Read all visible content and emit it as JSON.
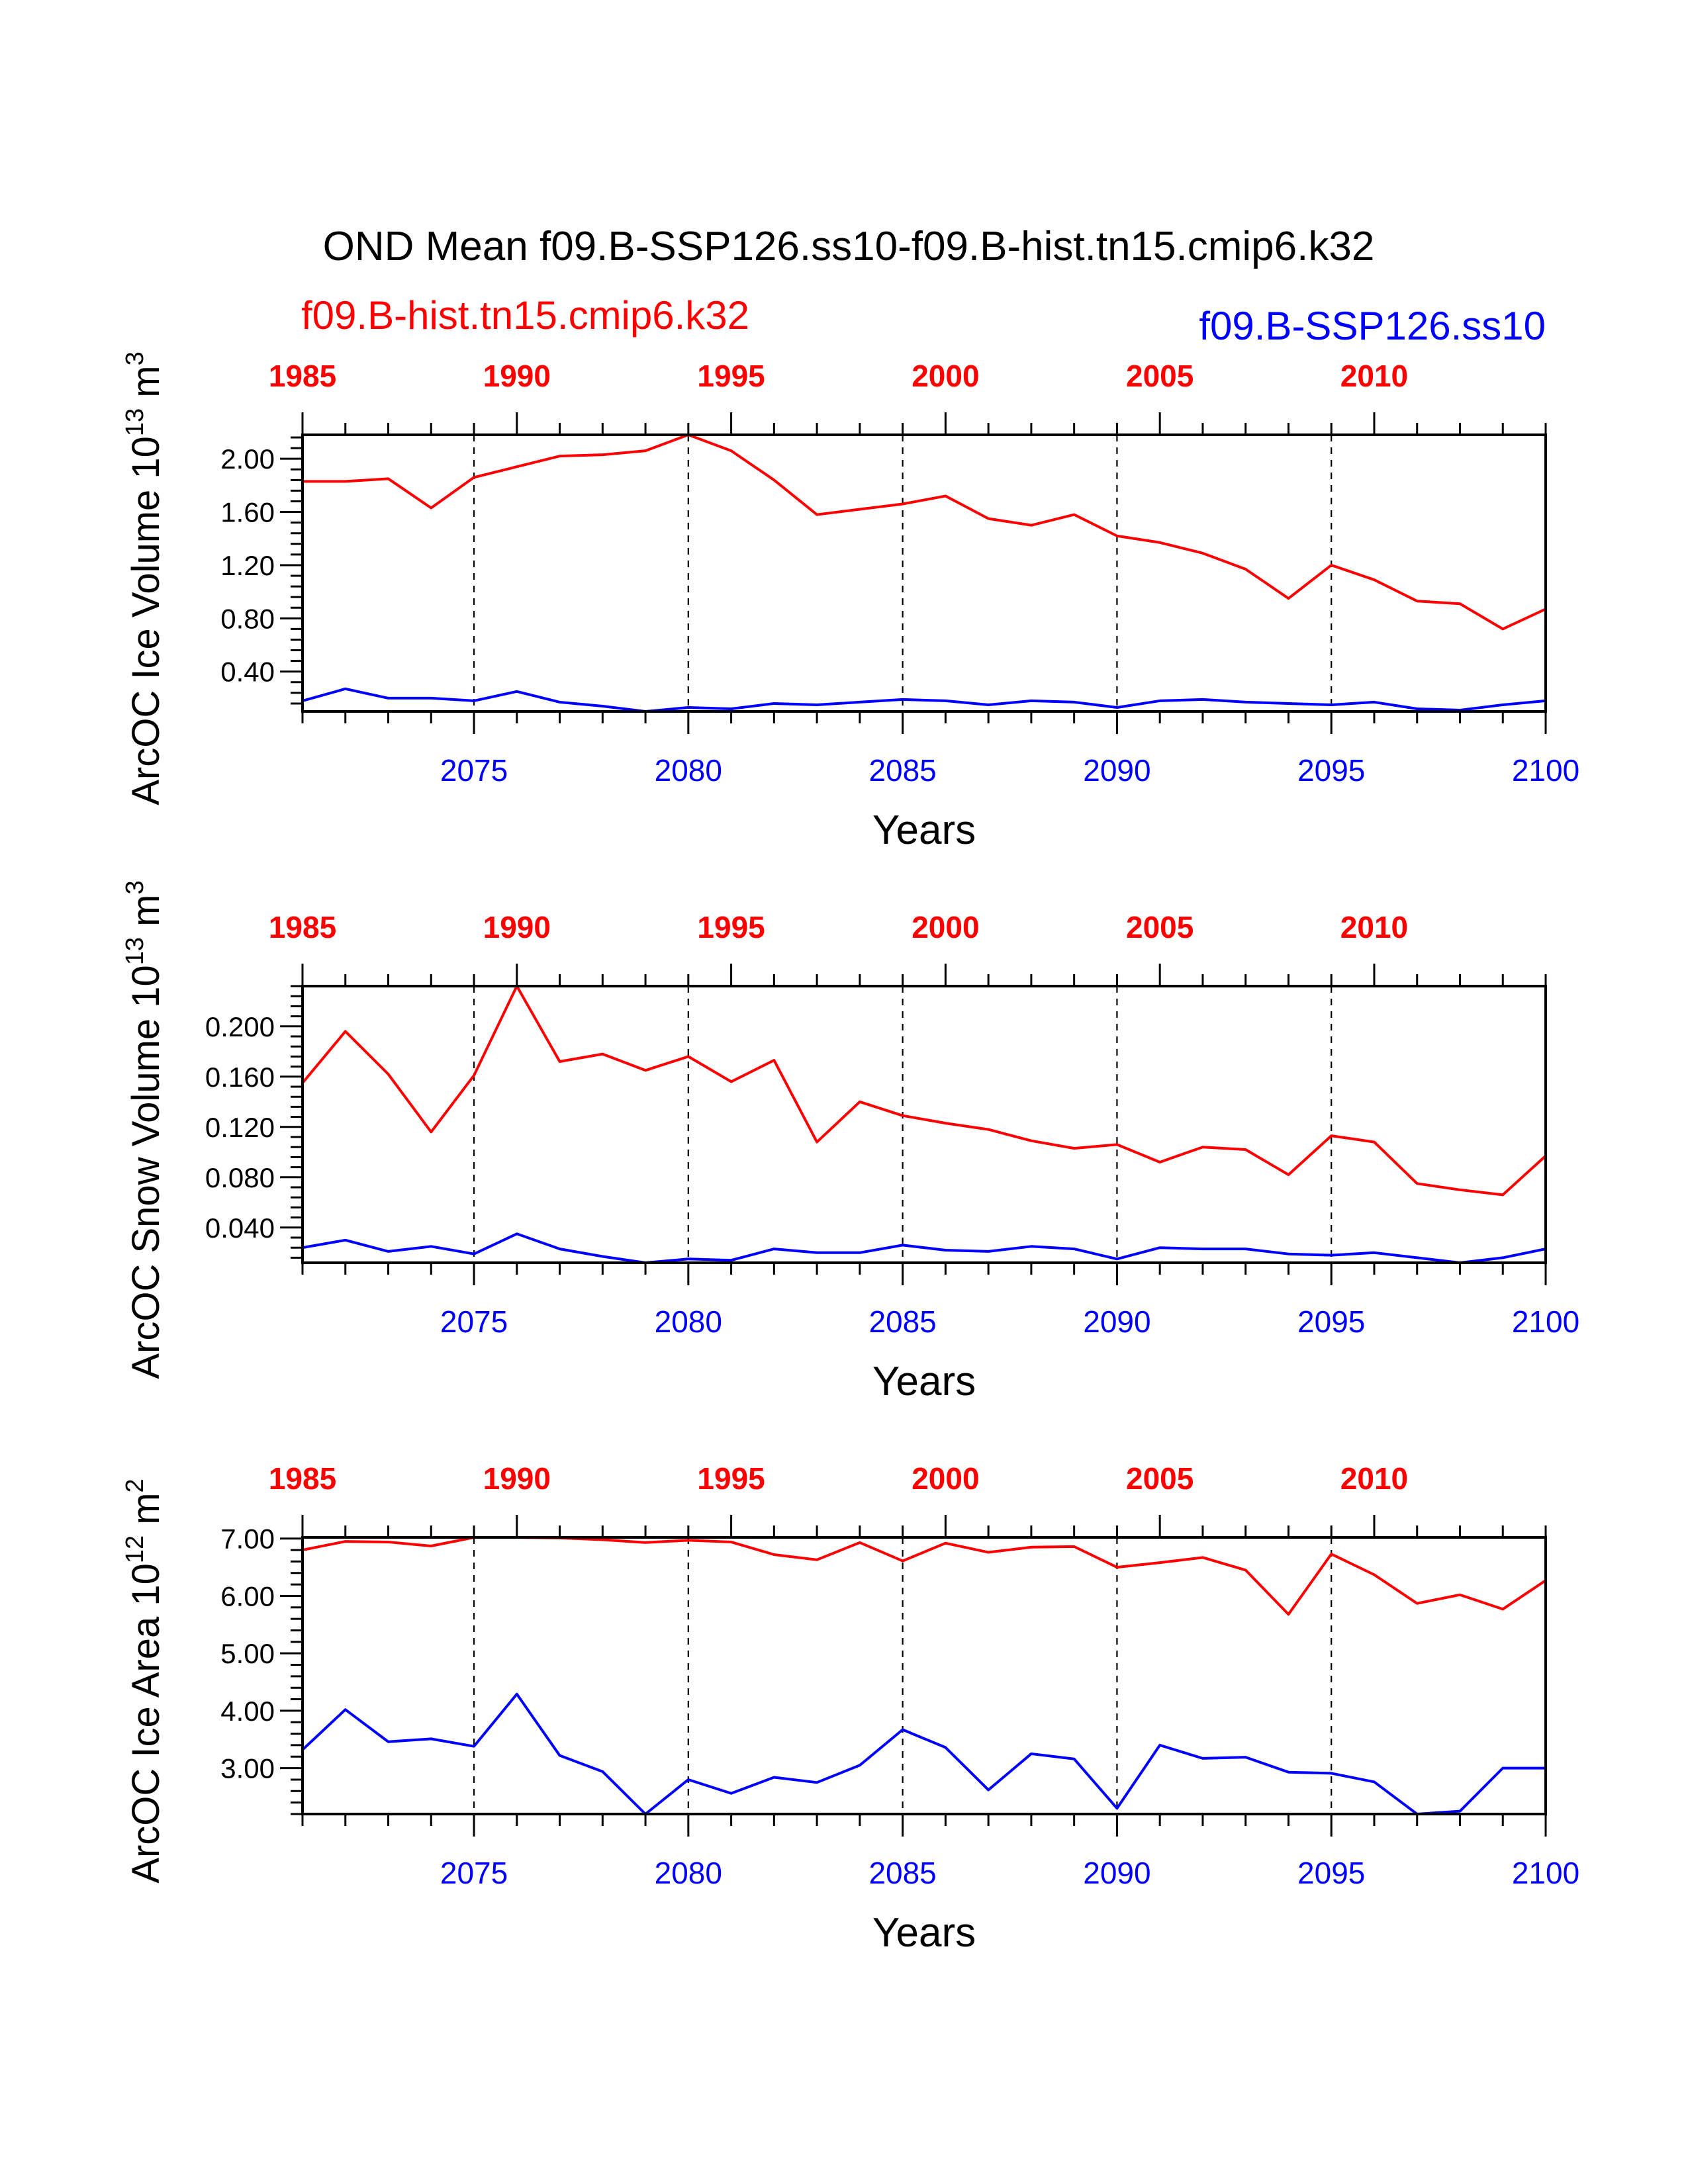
{
  "title": "OND Mean f09.B-SSP126.ss10-f09.B-hist.tn15.cmip6.k32",
  "legend": {
    "hist_label": "f09.B-hist.tn15.cmip6.k32",
    "ssp_label": "f09.B-SSP126.ss10"
  },
  "colors": {
    "hist": "#ff0000",
    "ssp": "#0000ff",
    "axis": "#000000"
  },
  "chart_data": [
    {
      "type": "line",
      "ylabel": "ArcOC Ice Volume 10",
      "ylabel_sup": "13",
      "ylabel_unit": "m",
      "ylabel_unit_sup": "3",
      "xlabel": "Years",
      "ylim": [
        0.1,
        2.18
      ],
      "yticks": [
        "0.40",
        "0.80",
        "1.20",
        "1.60",
        "2.00"
      ],
      "ytick_values": [
        0.4,
        0.8,
        1.2,
        1.6,
        2.0
      ],
      "yminor_step": 0.08,
      "xlim": [
        2071,
        2100
      ],
      "bottom_ticks": [
        "2075",
        "2080",
        "2085",
        "2090",
        "2095",
        "2100"
      ],
      "top_ticks": [
        "1985",
        "1990",
        "1995",
        "2000",
        "2005",
        "2010"
      ],
      "series": [
        {
          "name": "f09.B-hist.tn15.cmip6.k32",
          "x_start": 1985,
          "values": [
            1.83,
            1.83,
            1.85,
            1.63,
            1.86,
            1.94,
            2.02,
            2.03,
            2.06,
            2.18,
            2.06,
            1.84,
            1.58,
            1.62,
            1.66,
            1.72,
            1.55,
            1.5,
            1.58,
            1.42,
            1.37,
            1.29,
            1.17,
            0.95,
            1.2,
            1.09,
            0.93,
            0.91,
            0.72,
            0.87
          ]
        },
        {
          "name": "f09.B-SSP126.ss10",
          "x_start": 2071,
          "values": [
            0.18,
            0.27,
            0.2,
            0.2,
            0.18,
            0.25,
            0.17,
            0.14,
            0.1,
            0.13,
            0.12,
            0.16,
            0.15,
            0.17,
            0.19,
            0.18,
            0.15,
            0.18,
            0.17,
            0.13,
            0.18,
            0.19,
            0.17,
            0.16,
            0.15,
            0.17,
            0.12,
            0.11,
            0.15,
            0.18
          ]
        }
      ]
    },
    {
      "type": "line",
      "ylabel": "ArcOC Snow Volume 10",
      "ylabel_sup": "13",
      "ylabel_unit": "m",
      "ylabel_unit_sup": "3",
      "xlabel": "Years",
      "ylim": [
        0.012,
        0.232
      ],
      "yticks": [
        "0.040",
        "0.080",
        "0.120",
        "0.160",
        "0.200"
      ],
      "ytick_values": [
        0.04,
        0.08,
        0.12,
        0.16,
        0.2
      ],
      "yminor_step": 0.008,
      "xlim": [
        2071,
        2100
      ],
      "bottom_ticks": [
        "2075",
        "2080",
        "2085",
        "2090",
        "2095",
        "2100"
      ],
      "top_ticks": [
        "1985",
        "1990",
        "1995",
        "2000",
        "2005",
        "2010"
      ],
      "series": [
        {
          "name": "f09.B-hist.tn15.cmip6.k32",
          "x_start": 1985,
          "values": [
            0.155,
            0.196,
            0.162,
            0.116,
            0.161,
            0.232,
            0.172,
            0.178,
            0.165,
            0.176,
            0.156,
            0.173,
            0.108,
            0.14,
            0.129,
            0.123,
            0.118,
            0.109,
            0.103,
            0.106,
            0.092,
            0.104,
            0.102,
            0.082,
            0.113,
            0.108,
            0.075,
            0.07,
            0.066,
            0.097
          ]
        },
        {
          "name": "f09.B-SSP126.ss10",
          "x_start": 2071,
          "values": [
            0.024,
            0.03,
            0.021,
            0.025,
            0.019,
            0.035,
            0.023,
            0.017,
            0.012,
            0.015,
            0.014,
            0.023,
            0.02,
            0.02,
            0.026,
            0.022,
            0.021,
            0.025,
            0.023,
            0.015,
            0.024,
            0.023,
            0.023,
            0.019,
            0.018,
            0.02,
            0.016,
            0.012,
            0.016,
            0.023
          ]
        }
      ]
    },
    {
      "type": "line",
      "ylabel": "ArcOC Ice Area 10",
      "ylabel_sup": "12",
      "ylabel_unit": "m",
      "ylabel_unit_sup": "2",
      "xlabel": "Years",
      "ylim": [
        2.2,
        7.02
      ],
      "yticks": [
        "3.00",
        "4.00",
        "5.00",
        "6.00",
        "7.00"
      ],
      "ytick_values": [
        3,
        4,
        5,
        6,
        7
      ],
      "yminor_step": 0.2,
      "xlim": [
        2071,
        2100
      ],
      "bottom_ticks": [
        "2075",
        "2080",
        "2085",
        "2090",
        "2095",
        "2100"
      ],
      "top_ticks": [
        "1985",
        "1990",
        "1995",
        "2000",
        "2005",
        "2010"
      ],
      "series": [
        {
          "name": "f09.B-hist.tn15.cmip6.k32",
          "x_start": 1985,
          "values": [
            6.8,
            6.95,
            6.94,
            6.87,
            7.02,
            7.02,
            7.01,
            6.98,
            6.93,
            6.97,
            6.94,
            6.72,
            6.63,
            6.93,
            6.61,
            6.92,
            6.76,
            6.85,
            6.86,
            6.5,
            6.58,
            6.67,
            6.45,
            5.68,
            6.73,
            6.37,
            5.87,
            6.02,
            5.77,
            6.27
          ]
        },
        {
          "name": "f09.B-SSP126.ss10",
          "x_start": 2071,
          "values": [
            3.32,
            4.02,
            3.46,
            3.51,
            3.38,
            4.29,
            3.22,
            2.94,
            2.2,
            2.8,
            2.56,
            2.84,
            2.75,
            3.05,
            3.67,
            3.36,
            2.62,
            3.25,
            3.16,
            2.3,
            3.4,
            3.17,
            3.19,
            2.93,
            2.91,
            2.76,
            2.2,
            2.25,
            3.0,
            3.0
          ]
        }
      ]
    }
  ]
}
